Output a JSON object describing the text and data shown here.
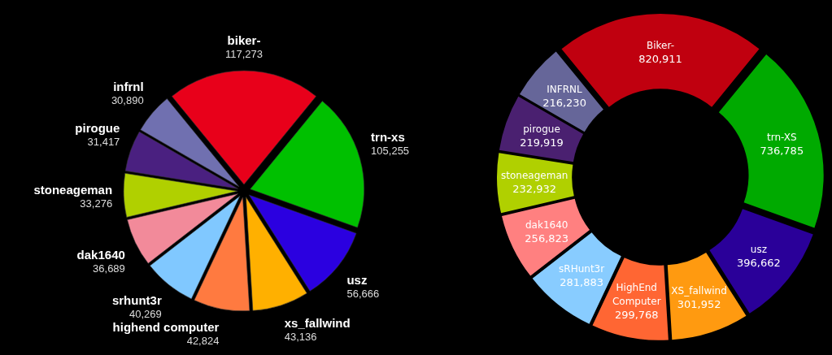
{
  "chart_data": [
    {
      "type": "pie",
      "categories": [
        "biker-",
        "trn-xs",
        "usz",
        "xs_fallwind",
        "highend computer",
        "srhunt3r",
        "dak1640",
        "stoneageman",
        "pirogue",
        "infrnl"
      ],
      "values": [
        117273,
        105255,
        56666,
        43136,
        42824,
        40269,
        36689,
        33276,
        31417,
        30890
      ],
      "value_labels": [
        "117,273",
        "105,255",
        "56,666",
        "43,136",
        "42,824",
        "40,269",
        "36,689",
        "33,276",
        "31,417",
        "30,890"
      ],
      "colors": [
        "#e8001a",
        "#00c000",
        "#2b00e0",
        "#ffb000",
        "#ff7a40",
        "#80c8ff",
        "#f28a9a",
        "#b0d000",
        "#4a2080",
        "#7070b0"
      ]
    },
    {
      "type": "donut",
      "categories": [
        "Biker-",
        "trn-XS",
        "usz",
        "XS_fallwind",
        "HighEnd Computer",
        "sRHunt3r",
        "dak1640",
        "stoneageman",
        "pirogue",
        "INFRNL"
      ],
      "values": [
        820911,
        736785,
        396662,
        301952,
        299768,
        281883,
        256823,
        232932,
        219919,
        216230
      ],
      "value_labels": [
        "820,911",
        "736,785",
        "396,662",
        "301,952",
        "299,768",
        "281,883",
        "256,823",
        "232,932",
        "219,919",
        "216,230"
      ],
      "colors": [
        "#c0000f",
        "#00aa00",
        "#2a0099",
        "#ff9a10",
        "#ff6633",
        "#88ccff",
        "#ff8080",
        "#b0d000",
        "#4a2070",
        "#666699"
      ]
    }
  ]
}
